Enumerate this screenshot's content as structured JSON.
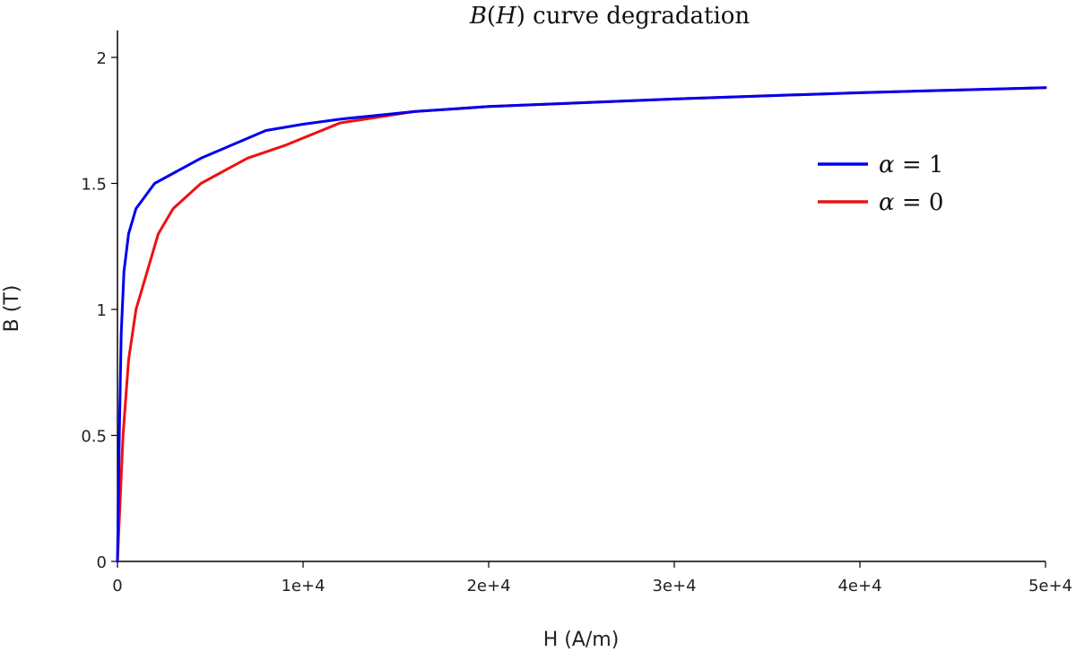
{
  "chart_data": {
    "type": "line",
    "title": "B(H) curve degradation",
    "title_italic_parts": [
      "B",
      "H"
    ],
    "xlabel": "H (A/m)",
    "ylabel": "B (T)",
    "xlim": [
      0,
      50000
    ],
    "ylim": [
      0,
      2.1
    ],
    "x_ticks": [
      0,
      10000,
      20000,
      30000,
      40000,
      50000
    ],
    "x_tick_labels": [
      "0",
      "1e+4",
      "2e+4",
      "3e+4",
      "4e+4",
      "5e+4"
    ],
    "y_ticks": [
      0,
      0.5,
      1,
      1.5,
      2
    ],
    "y_tick_labels": [
      "0",
      "0.5",
      "1",
      "1.5",
      "2"
    ],
    "grid": false,
    "legend_position": "right",
    "series": [
      {
        "name": "α = 1",
        "color": "#0000ee",
        "x": [
          0,
          100,
          200,
          350,
          600,
          1000,
          2000,
          4500,
          8000,
          10000,
          12000,
          16000,
          20000,
          30000,
          40000,
          50000
        ],
        "y": [
          0,
          0.5,
          0.9,
          1.15,
          1.3,
          1.4,
          1.5,
          1.6,
          1.71,
          1.735,
          1.755,
          1.785,
          1.805,
          1.835,
          1.86,
          1.88
        ]
      },
      {
        "name": "α = 0",
        "color": "#ee1111",
        "x": [
          0,
          300,
          600,
          1000,
          1400,
          1800,
          2200,
          3000,
          4500,
          7000,
          9000,
          12000,
          16000,
          20000,
          30000,
          40000,
          50000
        ],
        "y": [
          0,
          0.5,
          0.8,
          1.0,
          1.1,
          1.2,
          1.3,
          1.4,
          1.5,
          1.6,
          1.65,
          1.74,
          1.785,
          1.805,
          1.835,
          1.86,
          1.88
        ]
      }
    ]
  }
}
